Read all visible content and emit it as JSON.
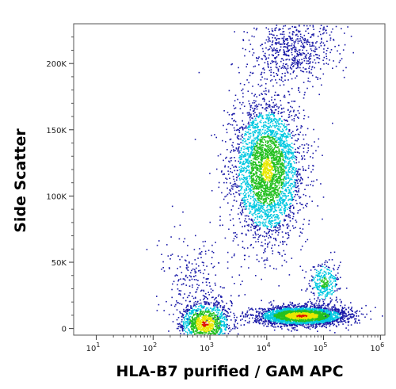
{
  "chart_data": {
    "type": "scatter",
    "title": "",
    "xlabel": "HLA-B7 purified / GAM APC",
    "ylabel": "Side Scatter",
    "x_scale": "log",
    "xlim": [
      4,
      1200000
    ],
    "ylim": [
      -5000,
      230000
    ],
    "x_ticks": [
      {
        "value": 10,
        "exp": "1"
      },
      {
        "value": 100,
        "exp": "2"
      },
      {
        "value": 1000,
        "exp": "3"
      },
      {
        "value": 10000,
        "exp": "4"
      },
      {
        "value": 100000,
        "exp": "5"
      },
      {
        "value": 1000000,
        "exp": "6"
      }
    ],
    "y_ticks": [
      {
        "value": 0,
        "label": "0"
      },
      {
        "value": 50000,
        "label": "50K"
      },
      {
        "value": 100000,
        "label": "100K"
      },
      {
        "value": 150000,
        "label": "150K"
      },
      {
        "value": 200000,
        "label": "200K"
      }
    ],
    "grid": false,
    "legend": "none",
    "color_map": "density (blue-cyan-green-yellow-red)",
    "populations": [
      {
        "center_x": 10000,
        "center_y": 120000,
        "events": 3400,
        "peak_density": "yellow"
      },
      {
        "center_x": 30000,
        "center_y": 210000,
        "events": 650,
        "peak_density": "blue"
      },
      {
        "center_x": 800,
        "center_y": 4000,
        "events": 1300,
        "peak_density": "red"
      },
      {
        "center_x": 40000,
        "center_y": 10000,
        "events": 3100,
        "peak_density": "red"
      },
      {
        "center_x": 100000,
        "center_y": 35000,
        "events": 320,
        "peak_density": "green"
      },
      {
        "center_x": 500,
        "center_y": 40000,
        "events": 220,
        "peak_density": "blue"
      }
    ],
    "colors": {
      "low": "#1a1aa8",
      "medium_low": "#00c8e0",
      "medium": "#24c020",
      "medium_high": "#e8e800",
      "high": "#e01000"
    }
  }
}
